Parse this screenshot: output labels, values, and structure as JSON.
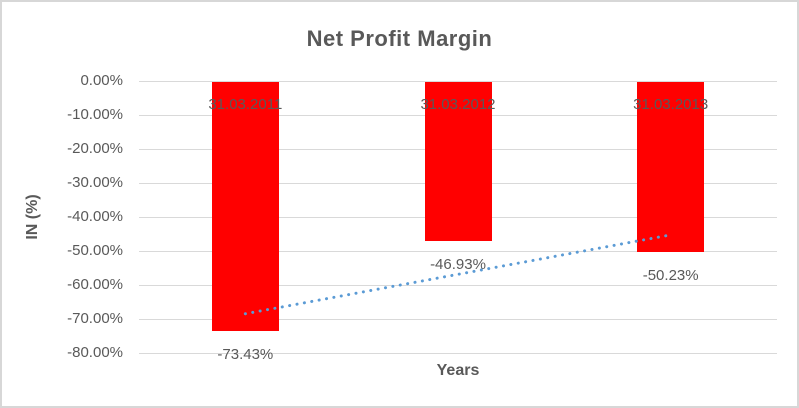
{
  "chart_data": {
    "type": "bar",
    "title": "Net Profit Margin",
    "xlabel": "Years",
    "ylabel": "IN (%)",
    "categories": [
      "31.03.2011",
      "31.03.2012",
      "31.03.2013"
    ],
    "values": [
      -73.43,
      -46.93,
      -50.23
    ],
    "data_labels": [
      "-73.43%",
      "-46.93%",
      "-50.23%"
    ],
    "ylim": [
      -80,
      0
    ],
    "ytick_step": 10,
    "ytick_labels": [
      "0.00%",
      "-10.00%",
      "-20.00%",
      "-30.00%",
      "-40.00%",
      "-50.00%",
      "-60.00%",
      "-70.00%",
      "-80.00%"
    ],
    "grid": true,
    "legend": "none",
    "trendline": {
      "type": "linear",
      "style": "round-dotted",
      "start_value": -68.46,
      "end_value": -45.26,
      "color": "#5b9bd5"
    },
    "colors": {
      "bar": "#ff0000",
      "text": "#595959",
      "gridline": "#d9d9d9",
      "trendline": "#5b9bd5",
      "chart_border": "#d7d7d7"
    }
  }
}
